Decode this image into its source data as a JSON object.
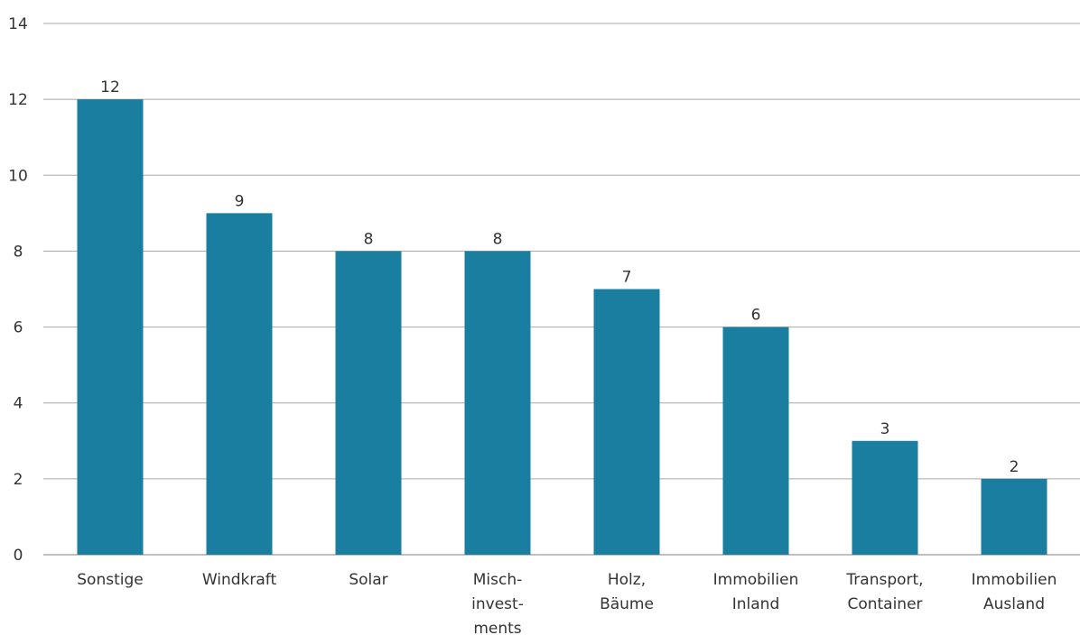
{
  "chart_data": {
    "type": "bar",
    "categories": [
      [
        "Sonstige"
      ],
      [
        "Windkraft"
      ],
      [
        "Solar"
      ],
      [
        "Misch-",
        "invest-",
        "ments"
      ],
      [
        "Holz,",
        "Bäume"
      ],
      [
        "Immobilien",
        "Inland"
      ],
      [
        "Transport,",
        "Container"
      ],
      [
        "Immobilien",
        "Ausland"
      ]
    ],
    "values": [
      12,
      9,
      8,
      8,
      7,
      6,
      3,
      2
    ],
    "data_labels": [
      "12",
      "9",
      "8",
      "8",
      "7",
      "6",
      "3",
      "2"
    ],
    "yticks": [
      "0",
      "2",
      "4",
      "6",
      "8",
      "10",
      "12",
      "14"
    ],
    "ylim": [
      0,
      14
    ],
    "grid": true,
    "title": "",
    "xlabel": "",
    "ylabel": "",
    "bar_color": "#1a7ea0"
  }
}
